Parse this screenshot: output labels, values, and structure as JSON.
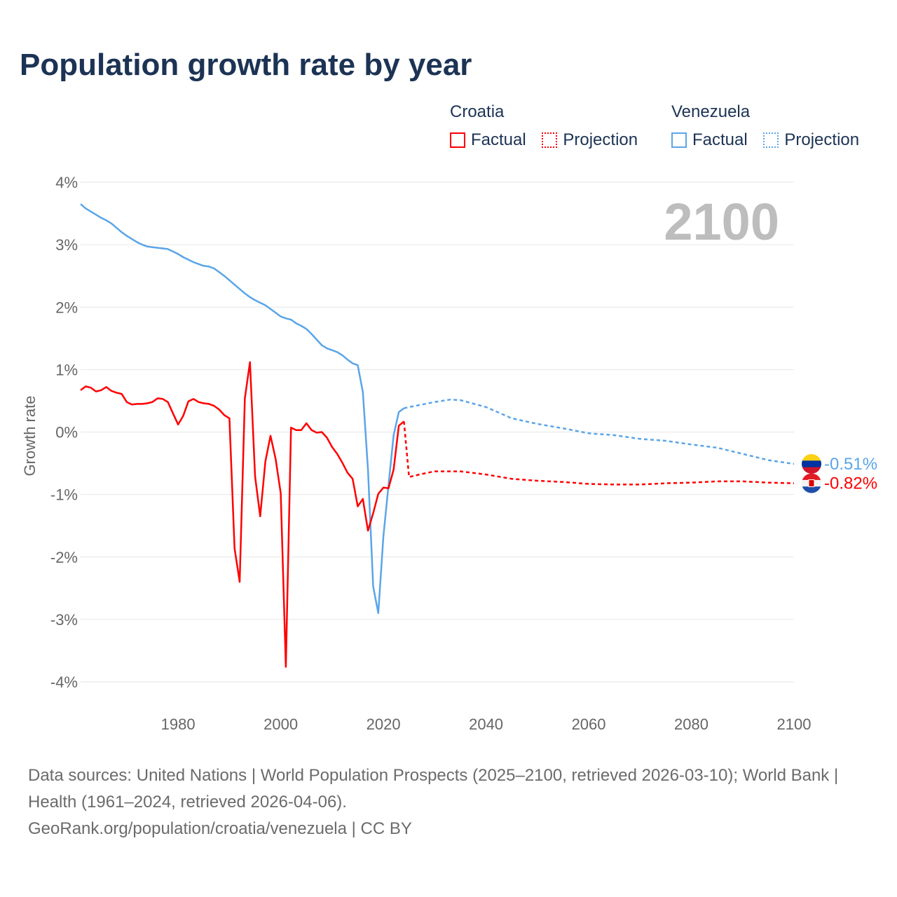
{
  "chart_data": {
    "type": "line",
    "title": "Population growth rate by year",
    "ylabel": "Growth rate",
    "xlabel": "",
    "xlim": [
      1961,
      2100
    ],
    "ylim": [
      -4,
      4
    ],
    "x_ticks": [
      "1980",
      "2000",
      "2020",
      "2040",
      "2060",
      "2080",
      "2100"
    ],
    "x_tick_values": [
      1980,
      2000,
      2020,
      2040,
      2060,
      2080,
      2100
    ],
    "y_ticks": [
      "4%",
      "3%",
      "2%",
      "1%",
      "0%",
      "-1%",
      "-2%",
      "-3%",
      "-4%"
    ],
    "y_tick_values": [
      4,
      3,
      2,
      1,
      0,
      -1,
      -2,
      -3,
      -4
    ],
    "grid": true,
    "year_label": "2100",
    "legend_placement": "top-right",
    "legend": {
      "factual_label": "Factual",
      "projection_label": "Projection"
    },
    "series": [
      {
        "name": "Croatia",
        "color": "#ff0000",
        "end_label": "-0.82%",
        "flag": "croatia-flag",
        "factual": {
          "x": [
            1961,
            1962,
            1963,
            1964,
            1965,
            1966,
            1967,
            1968,
            1969,
            1970,
            1971,
            1972,
            1973,
            1974,
            1975,
            1976,
            1977,
            1978,
            1979,
            1980,
            1981,
            1982,
            1983,
            1984,
            1985,
            1986,
            1987,
            1988,
            1989,
            1990,
            1991,
            1992,
            1993,
            1994,
            1995,
            1996,
            1997,
            1998,
            1999,
            2000,
            2001,
            2002,
            2003,
            2004,
            2005,
            2006,
            2007,
            2008,
            2009,
            2010,
            2011,
            2012,
            2013,
            2014,
            2015,
            2016,
            2017,
            2018,
            2019,
            2020,
            2021,
            2022,
            2023,
            2024
          ],
          "y": [
            0.67,
            0.73,
            0.71,
            0.65,
            0.67,
            0.72,
            0.66,
            0.63,
            0.61,
            0.48,
            0.44,
            0.45,
            0.45,
            0.46,
            0.48,
            0.54,
            0.53,
            0.48,
            0.3,
            0.12,
            0.26,
            0.49,
            0.53,
            0.48,
            0.46,
            0.45,
            0.42,
            0.36,
            0.27,
            0.22,
            -1.86,
            -2.4,
            0.54,
            1.12,
            -0.71,
            -1.35,
            -0.47,
            -0.06,
            -0.43,
            -0.98,
            -3.76,
            0.07,
            0.03,
            0.03,
            0.14,
            0.03,
            -0.01,
            0.0,
            -0.09,
            -0.24,
            -0.35,
            -0.49,
            -0.65,
            -0.75,
            -1.19,
            -1.07,
            -1.58,
            -1.3,
            -0.99,
            -0.89,
            -0.9,
            -0.6,
            0.1,
            0.17
          ]
        },
        "projection": {
          "x": [
            2024,
            2025,
            2027,
            2030,
            2035,
            2040,
            2045,
            2050,
            2055,
            2060,
            2065,
            2070,
            2075,
            2080,
            2085,
            2090,
            2095,
            2100
          ],
          "y": [
            0.17,
            -0.72,
            -0.68,
            -0.63,
            -0.63,
            -0.68,
            -0.75,
            -0.78,
            -0.8,
            -0.83,
            -0.84,
            -0.84,
            -0.82,
            -0.81,
            -0.79,
            -0.79,
            -0.81,
            -0.82
          ]
        }
      },
      {
        "name": "Venezuela",
        "color": "#5aa5e8",
        "end_label": "-0.51%",
        "flag": "venezuela-flag",
        "factual": {
          "x": [
            1961,
            1962,
            1963,
            1964,
            1965,
            1966,
            1967,
            1968,
            1969,
            1970,
            1971,
            1972,
            1973,
            1974,
            1975,
            1976,
            1977,
            1978,
            1979,
            1980,
            1981,
            1982,
            1983,
            1984,
            1985,
            1986,
            1987,
            1988,
            1989,
            1990,
            1991,
            1992,
            1993,
            1994,
            1995,
            1996,
            1997,
            1998,
            1999,
            2000,
            2001,
            2002,
            2003,
            2004,
            2005,
            2006,
            2007,
            2008,
            2009,
            2010,
            2011,
            2012,
            2013,
            2014,
            2015,
            2016,
            2017,
            2018,
            2019,
            2020,
            2021,
            2022,
            2023,
            2024
          ],
          "y": [
            3.65,
            3.58,
            3.53,
            3.48,
            3.43,
            3.39,
            3.34,
            3.27,
            3.2,
            3.14,
            3.09,
            3.04,
            3.0,
            2.97,
            2.96,
            2.95,
            2.94,
            2.93,
            2.89,
            2.85,
            2.8,
            2.76,
            2.72,
            2.69,
            2.66,
            2.65,
            2.62,
            2.56,
            2.5,
            2.43,
            2.36,
            2.29,
            2.22,
            2.16,
            2.11,
            2.07,
            2.03,
            1.97,
            1.91,
            1.85,
            1.82,
            1.8,
            1.74,
            1.7,
            1.65,
            1.57,
            1.48,
            1.39,
            1.34,
            1.31,
            1.28,
            1.23,
            1.16,
            1.1,
            1.07,
            0.64,
            -0.6,
            -2.47,
            -2.9,
            -1.67,
            -0.85,
            -0.05,
            0.32,
            0.38
          ]
        },
        "projection": {
          "x": [
            2024,
            2025,
            2030,
            2033,
            2035,
            2040,
            2045,
            2050,
            2055,
            2060,
            2065,
            2070,
            2075,
            2080,
            2085,
            2090,
            2095,
            2100
          ],
          "y": [
            0.38,
            0.4,
            0.48,
            0.52,
            0.51,
            0.4,
            0.22,
            0.13,
            0.06,
            -0.02,
            -0.05,
            -0.11,
            -0.14,
            -0.2,
            -0.25,
            -0.35,
            -0.45,
            -0.51
          ]
        }
      }
    ]
  },
  "footer": {
    "sources": "Data sources: United Nations | World Population Prospects (2025–2100, retrieved 2026-03-10); World Bank | Health (1961–2024, retrieved 2026-04-06).",
    "credit": "GeoRank.org/population/croatia/venezuela | CC BY"
  }
}
